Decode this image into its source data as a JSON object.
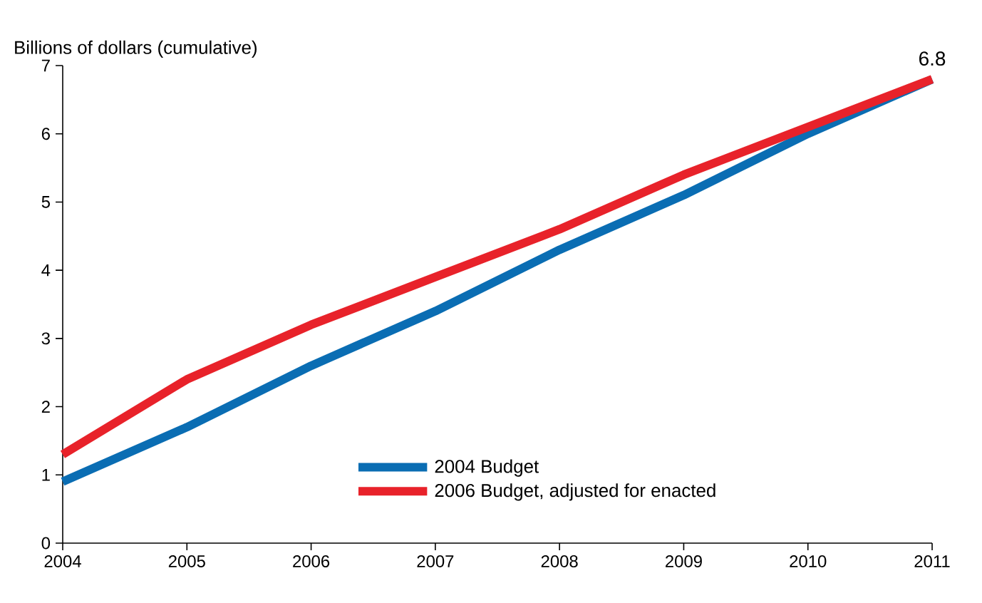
{
  "chart_data": {
    "type": "line",
    "ylabel": "Billions of dollars (cumulative)",
    "x": [
      2004,
      2005,
      2006,
      2007,
      2008,
      2009,
      2010,
      2011
    ],
    "series": [
      {
        "name": "2004 Budget",
        "color": "#0a6db3",
        "values": [
          0.9,
          1.7,
          2.6,
          3.4,
          4.3,
          5.1,
          6.0,
          6.8
        ]
      },
      {
        "name": "2006 Budget, adjusted for enacted",
        "color": "#e8222a",
        "values": [
          1.3,
          2.4,
          3.2,
          3.9,
          4.6,
          5.4,
          6.1,
          6.8
        ]
      }
    ],
    "xlim": [
      2004,
      2011
    ],
    "xticks": [
      2004,
      2005,
      2006,
      2007,
      2008,
      2009,
      2010,
      2011
    ],
    "ylim": [
      0,
      7
    ],
    "yticks": [
      0,
      1,
      2,
      3,
      4,
      5,
      6,
      7
    ],
    "annotations": [
      {
        "text": "6.8",
        "x": 2011,
        "y": 6.8
      }
    ],
    "legend": "bottom right",
    "grid": false,
    "marker": "none",
    "line_style": "solid"
  }
}
